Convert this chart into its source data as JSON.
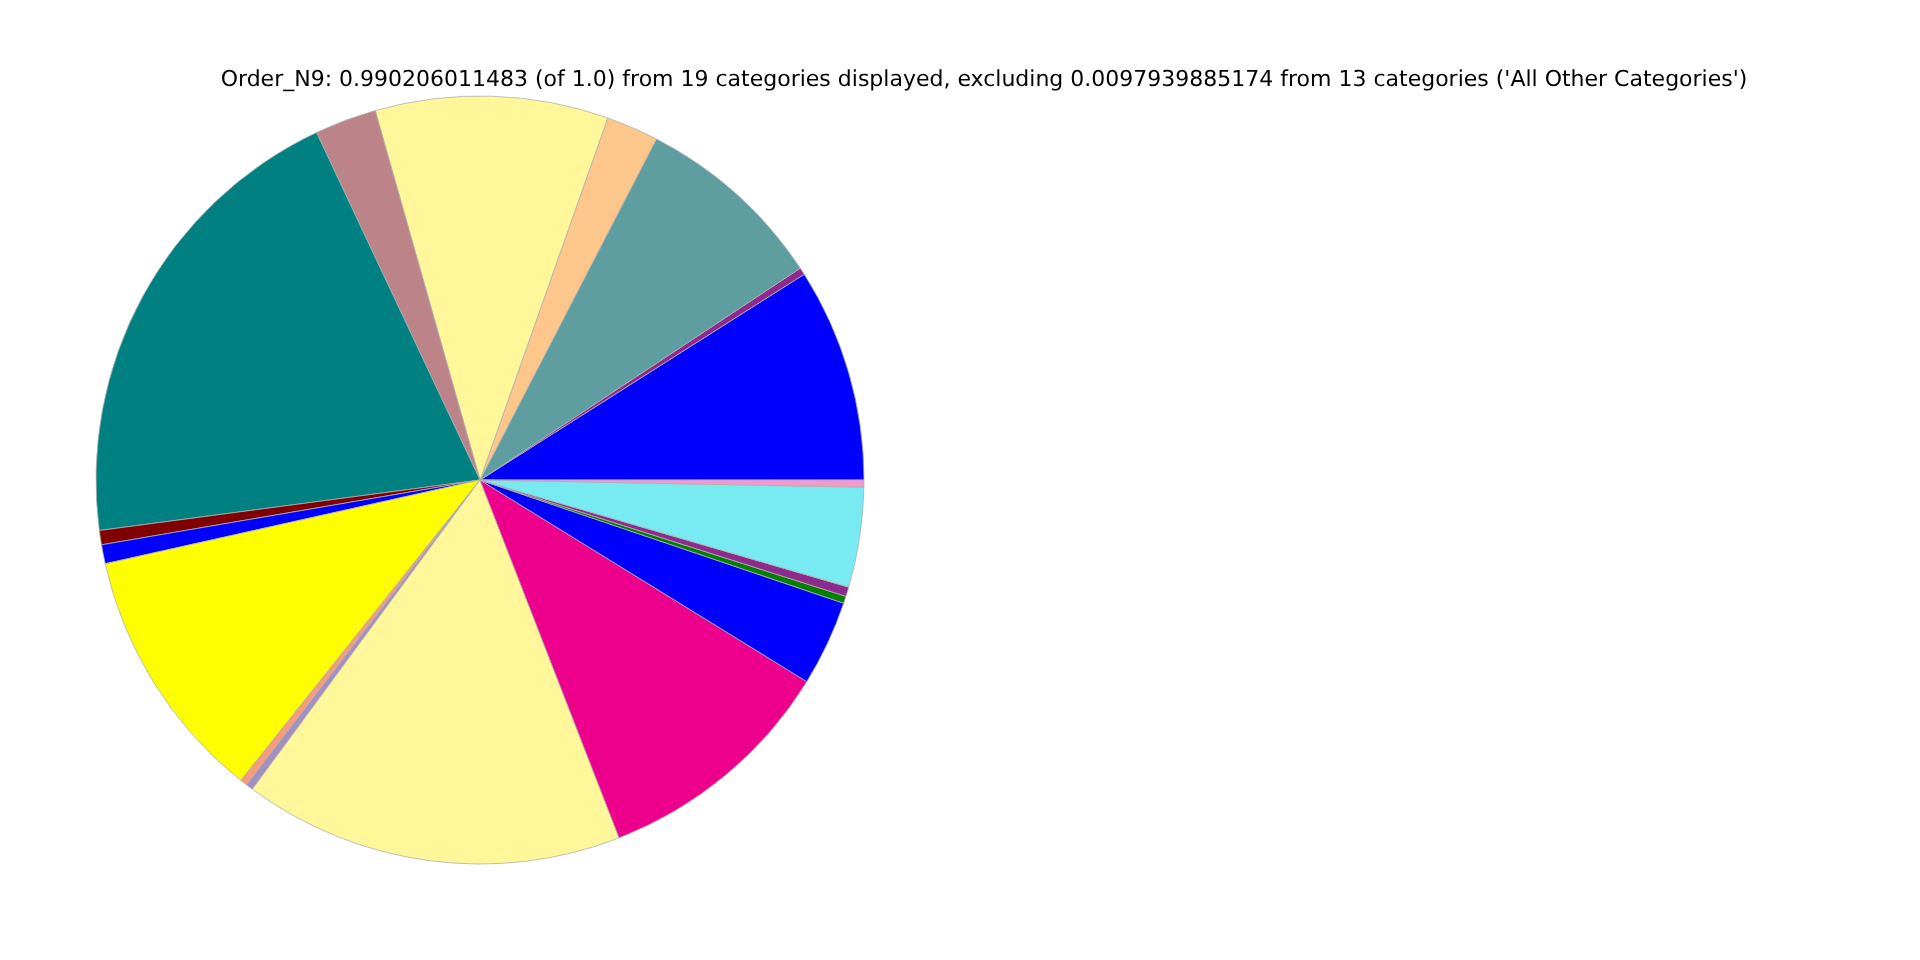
{
  "chart_data": {
    "type": "pie",
    "title": "Order_N9: 0.990206011483 (of 1.0) from 19 categories displayed, excluding 0.0097939885174 from 13 categories ('All Other Categories')",
    "categories": [
      null,
      null,
      null,
      null,
      null,
      null,
      null,
      null,
      null,
      null,
      null,
      null,
      null,
      null,
      null,
      null,
      null,
      null,
      null
    ],
    "values": [
      9.0,
      0.3,
      8.1,
      2.2,
      9.8,
      2.6,
      20.1,
      0.6,
      0.8,
      10.8,
      0.3,
      0.3,
      16.0,
      10.3,
      3.6,
      0.3,
      0.4,
      4.2,
      0.3
    ],
    "colors": [
      "#0000ff",
      "#8e2a8e",
      "#5f9ea0",
      "#fdc68a",
      "#fff799",
      "#bc8489",
      "#008080",
      "#800000",
      "#0000ff",
      "#ffff00",
      "#f79c78",
      "#a38fc0",
      "#fff799",
      "#ec008c",
      "#0000ff",
      "#008000",
      "#8e2a8e",
      "#78eaf2",
      "#f49ac8"
    ],
    "legend": false
  }
}
